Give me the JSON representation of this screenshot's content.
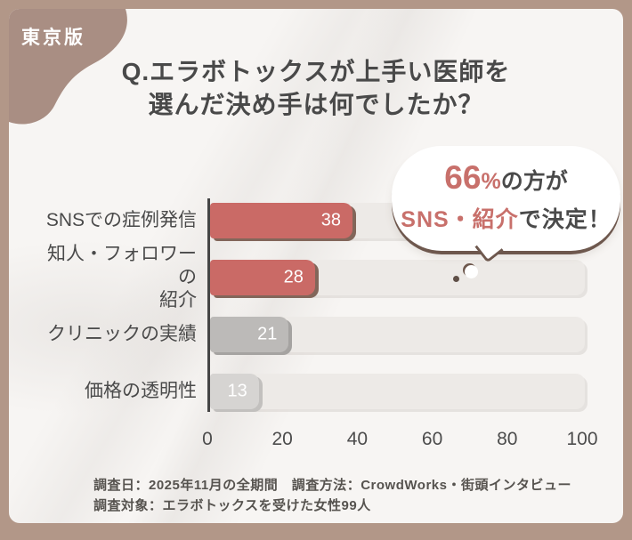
{
  "badge": {
    "label": "東京版"
  },
  "title": {
    "line1": "Q.エラボトックスが上手い医師を",
    "line2": "選んだ決め手は何でしたか？"
  },
  "callout": {
    "value": "66",
    "percent_sign": "%",
    "line1_rest": "の方が",
    "line2_highlight": "SNS・紹介",
    "line2_rest": "で決定！"
  },
  "chart_data": {
    "type": "bar",
    "orientation": "horizontal",
    "title": "Q.エラボトックスが上手い医師を選んだ決め手は何でしたか？",
    "categories": [
      "SNSでの症例発信",
      "知人・フォロワーの紹介",
      "クリニックの実績",
      "価格の透明性"
    ],
    "categories_wrapped": [
      [
        "SNSでの症例発信"
      ],
      [
        "知人・フォロワーの",
        "紹介"
      ],
      [
        "クリニックの実績"
      ],
      [
        "価格の透明性"
      ]
    ],
    "values": [
      38,
      28,
      21,
      13
    ],
    "xlim": [
      0,
      100
    ],
    "x_ticks": [
      "0",
      "20",
      "40",
      "60",
      "80",
      "100"
    ],
    "grid": false,
    "legend": false,
    "bar_colors": [
      "#ca6a66",
      "#ca6a66",
      "#bcbab8",
      "#d6d4d2"
    ],
    "bar_shadow_colors": [
      "#82665a",
      "#82665a",
      "#a5a3a1",
      "#c2c0be"
    ],
    "track_color": "#edeae7"
  },
  "footer": {
    "line1": "調査日：2025年11月の全期間　調査方法：CrowdWorks・街頭インタビュー",
    "line2": "調査対象：エラボトックスを受けた女性99人"
  },
  "colors": {
    "frame": "#b29788",
    "card_bg": "#f7f5f3",
    "corner_blob": "#a98e83",
    "accent_red": "#c8706b",
    "bubble_border": "#6e584e",
    "text_dark": "#4a4a4a"
  }
}
